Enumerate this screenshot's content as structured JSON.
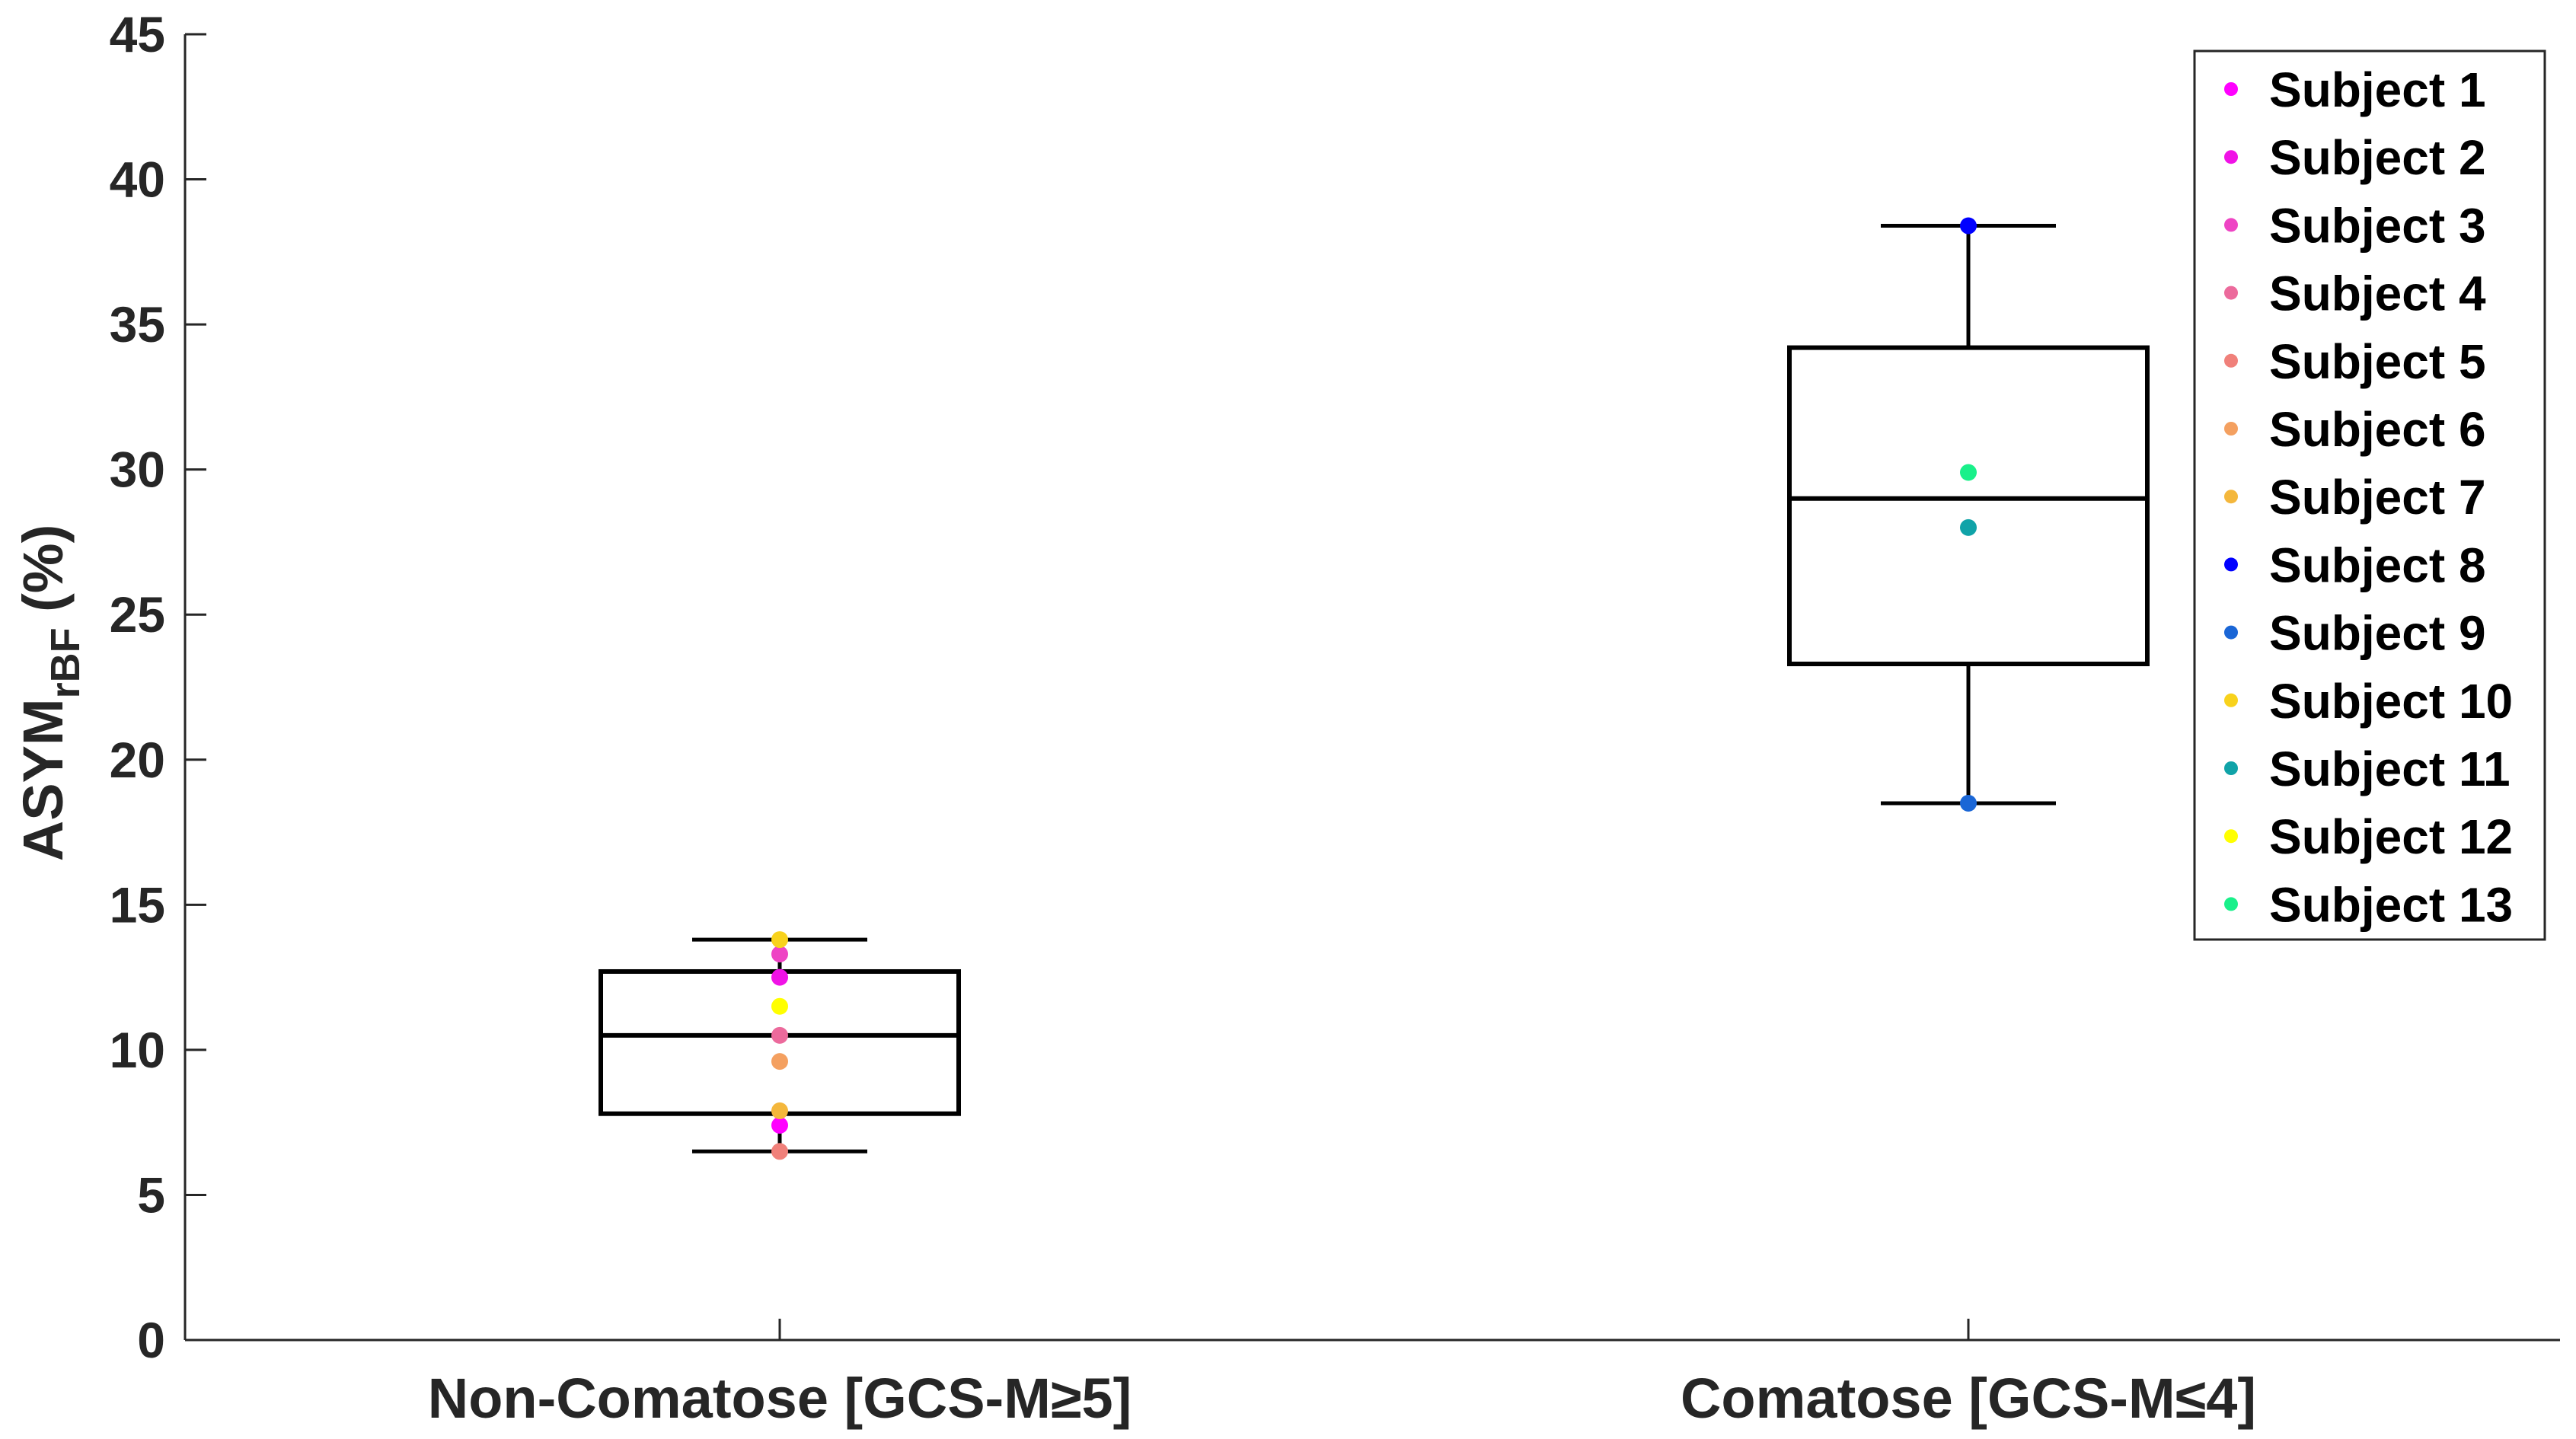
{
  "chart_data": {
    "type": "box",
    "ylabel": "ASYM",
    "ylabel_sub": "rBF",
    "ylabel_unit": "(%)",
    "ylim": [
      0,
      45
    ],
    "yticks": [
      0,
      5,
      10,
      15,
      20,
      25,
      30,
      35,
      40,
      45
    ],
    "categories": [
      "Non-Comatose [GCS-M≥5]",
      "Comatose [GCS-M≤4]"
    ],
    "boxes": [
      {
        "min": 6.5,
        "q1": 7.8,
        "median": 10.5,
        "q3": 12.7,
        "max": 13.8
      },
      {
        "min": 18.5,
        "q1": 23.3,
        "median": 29.0,
        "q3": 34.2,
        "max": 38.4
      }
    ],
    "series": [
      {
        "name": "Subject 1",
        "color": "#ff00ff",
        "category": 0,
        "value": 7.4
      },
      {
        "name": "Subject 2",
        "color": "#f012e6",
        "category": 0,
        "value": 12.5
      },
      {
        "name": "Subject 3",
        "color": "#ee44c4",
        "category": 0,
        "value": 13.3
      },
      {
        "name": "Subject 4",
        "color": "#ec6a9c",
        "category": 0,
        "value": 10.5
      },
      {
        "name": "Subject 5",
        "color": "#f0807a",
        "category": 0,
        "value": 6.5
      },
      {
        "name": "Subject 6",
        "color": "#f4a060",
        "category": 0,
        "value": 9.6
      },
      {
        "name": "Subject 7",
        "color": "#f4b73c",
        "category": 0,
        "value": 7.9
      },
      {
        "name": "Subject 8",
        "color": "#0000ff",
        "category": 1,
        "value": 38.4
      },
      {
        "name": "Subject 9",
        "color": "#1a66d6",
        "category": 1,
        "value": 18.5
      },
      {
        "name": "Subject 10",
        "color": "#f8d21c",
        "category": 0,
        "value": 13.8
      },
      {
        "name": "Subject 11",
        "color": "#10a3a8",
        "category": 1,
        "value": 28.0
      },
      {
        "name": "Subject 12",
        "color": "#ffff00",
        "category": 0,
        "value": 11.5
      },
      {
        "name": "Subject 13",
        "color": "#19f08a",
        "category": 1,
        "value": 29.9
      }
    ],
    "legend_position": "top-right"
  }
}
